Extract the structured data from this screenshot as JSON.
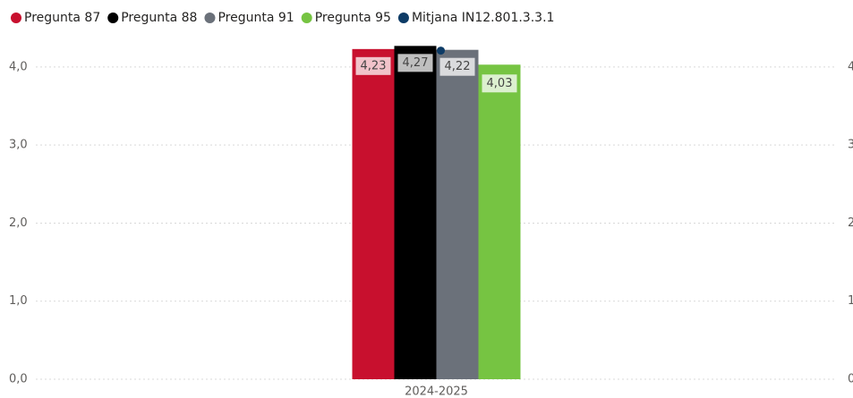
{
  "chart_data": {
    "type": "bar",
    "categories": [
      "2024-2025"
    ],
    "series": [
      {
        "name": "Pregunta 87",
        "color": "#c8102e",
        "values": [
          4.23
        ],
        "value_labels": [
          "4,23"
        ]
      },
      {
        "name": "Pregunta 88",
        "color": "#000000",
        "values": [
          4.27
        ],
        "value_labels": [
          "4,27"
        ]
      },
      {
        "name": "Pregunta 91",
        "color": "#6b717a",
        "values": [
          4.22
        ],
        "value_labels": [
          "4,22"
        ]
      },
      {
        "name": "Pregunta 95",
        "color": "#76c442",
        "values": [
          4.03
        ],
        "value_labels": [
          "4,03"
        ]
      },
      {
        "name": "Mitjana IN12.801.3.3.1",
        "color": "#0d3b66",
        "values": [
          4.21
        ],
        "axis": "y2",
        "type": "line"
      }
    ],
    "ylim": [
      0,
      4.4
    ],
    "yticks": [
      {
        "value": 0,
        "label": "0,0"
      },
      {
        "value": 1,
        "label": "1,0"
      },
      {
        "value": 2,
        "label": "2,0"
      },
      {
        "value": 3,
        "label": "3,0"
      },
      {
        "value": 4,
        "label": "4,0"
      }
    ],
    "y2lim": [
      0,
      4.4
    ],
    "y2ticks": [
      0,
      1,
      2,
      3,
      4
    ],
    "grid": true,
    "legend": "top"
  }
}
